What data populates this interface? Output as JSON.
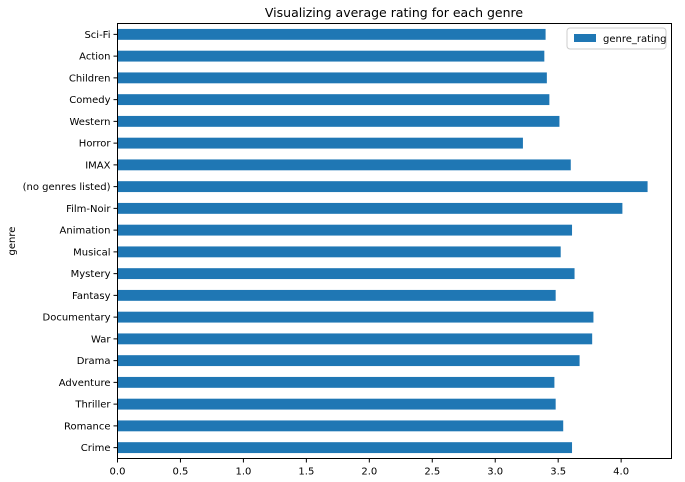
{
  "chart_data": {
    "type": "bar",
    "orientation": "horizontal",
    "title": "Visualizing average rating for each genre",
    "xlabel": "",
    "ylabel": "genre",
    "xlim": [
      0,
      4.4
    ],
    "xticks": [
      "0.0",
      "0.5",
      "1.0",
      "1.5",
      "2.0",
      "2.5",
      "3.0",
      "3.5",
      "4.0"
    ],
    "categories": [
      "Crime",
      "Romance",
      "Thriller",
      "Adventure",
      "Drama",
      "War",
      "Documentary",
      "Fantasy",
      "Mystery",
      "Musical",
      "Animation",
      "Film-Noir",
      "(no genres listed)",
      "IMAX",
      "Horror",
      "Western",
      "Comedy",
      "Children",
      "Action",
      "Sci-Fi"
    ],
    "series": [
      {
        "name": "genre_rating",
        "color": "#1f77b4",
        "values": [
          3.61,
          3.54,
          3.48,
          3.47,
          3.67,
          3.77,
          3.78,
          3.48,
          3.63,
          3.52,
          3.61,
          4.01,
          4.21,
          3.6,
          3.22,
          3.51,
          3.43,
          3.41,
          3.39,
          3.4
        ]
      }
    ],
    "legend": {
      "position": "top-right",
      "label": "genre_rating"
    },
    "grid": false
  }
}
